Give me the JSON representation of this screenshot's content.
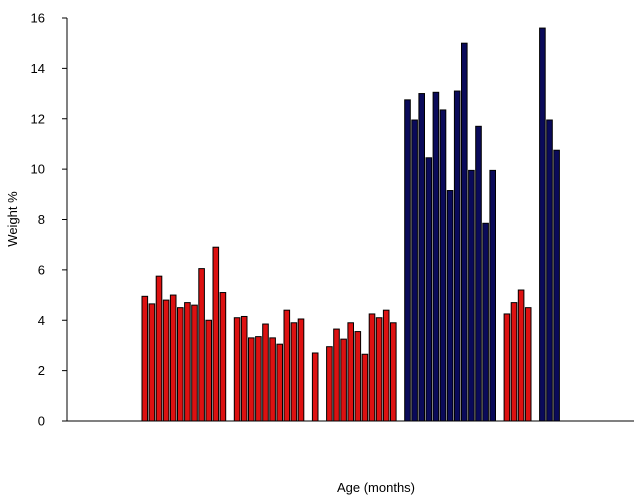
{
  "chart_data": {
    "type": "bar",
    "title": "",
    "xlabel": "Age (months)",
    "ylabel": "Weight %",
    "ylim": [
      0,
      16
    ],
    "yticks": [
      "0",
      "2",
      "4",
      "6",
      "8",
      "10",
      "12",
      "14",
      "16"
    ],
    "grid": false,
    "legend": "none",
    "colors": {
      "red": "#dd1111",
      "navy": "#0a0a5a"
    },
    "groups": [
      {
        "color": "red",
        "values": [
          4.95,
          4.65,
          5.75,
          4.8,
          5.0,
          4.5,
          4.7,
          4.6,
          6.05,
          4.0,
          6.9,
          5.1
        ]
      },
      {
        "color": "red",
        "values": [
          4.1,
          4.15,
          3.3,
          3.35,
          3.85,
          3.3,
          3.05,
          4.4,
          3.9,
          4.05
        ]
      },
      {
        "color": "red",
        "values": [
          2.7
        ]
      },
      {
        "color": "red",
        "values": [
          2.95,
          3.65,
          3.25,
          3.9,
          3.55,
          2.65,
          4.25,
          4.1,
          4.4,
          3.9
        ]
      },
      {
        "color": "navy",
        "values": [
          12.75,
          11.95,
          13.0,
          10.45,
          13.05,
          12.35,
          9.15,
          13.1,
          15.0,
          9.95,
          11.7,
          7.85,
          9.95
        ]
      },
      {
        "color": "red",
        "values": [
          4.25,
          4.7,
          5.2,
          4.5
        ]
      },
      {
        "color": "navy",
        "values": [
          15.6,
          11.95,
          10.75
        ]
      }
    ]
  }
}
